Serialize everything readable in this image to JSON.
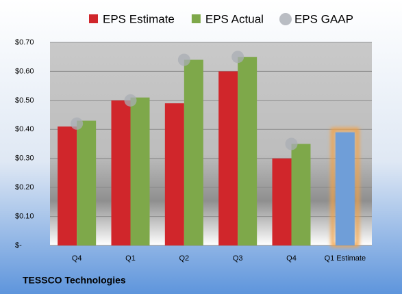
{
  "chart_data": {
    "type": "bar",
    "title": "TESSCO Technologies",
    "categories": [
      "Q4",
      "Q1",
      "Q2",
      "Q3",
      "Q4",
      "Q1 Estimate"
    ],
    "series": [
      {
        "name": "EPS Estimate",
        "color": "#d0262b",
        "colors": [
          "#d0262b",
          "#d0262b",
          "#d0262b",
          "#d0262b",
          "#d0262b",
          "#6f9ed8"
        ],
        "values": [
          0.41,
          0.5,
          0.49,
          0.6,
          0.3,
          0.39
        ]
      },
      {
        "name": "EPS Actual",
        "color": "#7ea84a",
        "values": [
          0.43,
          0.51,
          0.64,
          0.65,
          0.35,
          null
        ]
      },
      {
        "name": "EPS GAAP",
        "color": "#a9adb4",
        "marker": "circle",
        "values": [
          0.42,
          0.5,
          0.64,
          0.65,
          0.35,
          null
        ]
      }
    ],
    "ylim": [
      0,
      0.7
    ],
    "yticks": [
      {
        "value": 0,
        "label": "$-"
      },
      {
        "value": 0.1,
        "label": "$0.10"
      },
      {
        "value": 0.2,
        "label": "$0.20"
      },
      {
        "value": 0.3,
        "label": "$0.30"
      },
      {
        "value": 0.4,
        "label": "$0.40"
      },
      {
        "value": 0.5,
        "label": "$0.50"
      },
      {
        "value": 0.6,
        "label": "$0.60"
      },
      {
        "value": 0.7,
        "label": "$0.70"
      }
    ],
    "grid": true
  }
}
